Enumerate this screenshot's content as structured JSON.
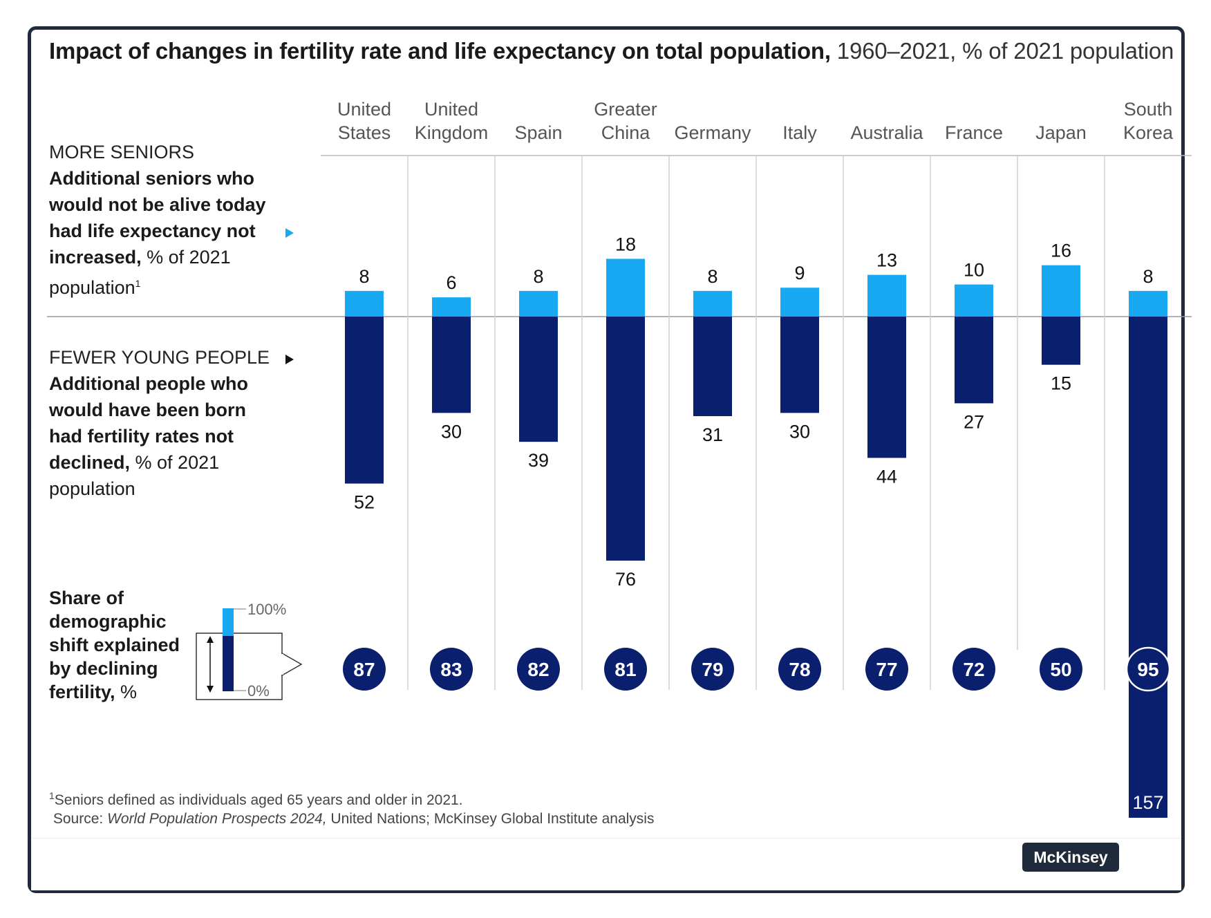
{
  "title": {
    "bold": "Impact of changes in fertility rate and life expectancy on total population,",
    "light": " 1960–2021, % of 2021 population"
  },
  "left_labels": {
    "seniors_cap": "MORE SENIORS",
    "seniors_bold": "Additional seniors who would not be alive today had life expectancy not increased,",
    "seniors_rest": " % of 2021 population",
    "seniors_sup": "1",
    "young_cap": "FEWER YOUNG PEOPLE",
    "young_bold": "Additional people who would have been born had fertility rates not declined,",
    "young_rest": " % of 2021 population",
    "share_bold": "Share of demographic shift explained by declining fertility,",
    "share_rest": " %",
    "legend_top": "100%",
    "legend_bottom": "0%"
  },
  "chart_data": {
    "type": "bar",
    "title": "Impact of changes in fertility rate and life expectancy on total population, 1960–2021, % of 2021 population",
    "categories": [
      [
        "United",
        "States"
      ],
      [
        "United",
        "Kingdom"
      ],
      [
        "Spain"
      ],
      [
        "Greater",
        "China"
      ],
      [
        "Germany"
      ],
      [
        "Italy"
      ],
      [
        "Australia"
      ],
      [
        "France"
      ],
      [
        "Japan"
      ],
      [
        "South",
        "Korea"
      ]
    ],
    "series": [
      {
        "name": "More seniors",
        "values": [
          8,
          6,
          8,
          18,
          8,
          9,
          13,
          10,
          16,
          8
        ],
        "color": "#18a9f2"
      },
      {
        "name": "Fewer young people",
        "values": [
          52,
          30,
          39,
          76,
          31,
          30,
          44,
          27,
          15,
          157
        ],
        "color": "#0a1f6e"
      }
    ],
    "share_explained_by_fertility": [
      87,
      83,
      82,
      81,
      79,
      78,
      77,
      72,
      50,
      95
    ]
  },
  "footnote": {
    "sup": "1",
    "line1": "Seniors defined as individuals aged 65 years and older in 2021.",
    "source_prefix": "Source: ",
    "source_italic": "World Population Prospects 2024,",
    "source_rest": " United Nations; McKinsey Global Institute analysis"
  },
  "brand": "McKinsey",
  "colors": {
    "seniors": "#18a9f2",
    "young": "#0a1f6e",
    "frame": "#1f2a3a"
  }
}
